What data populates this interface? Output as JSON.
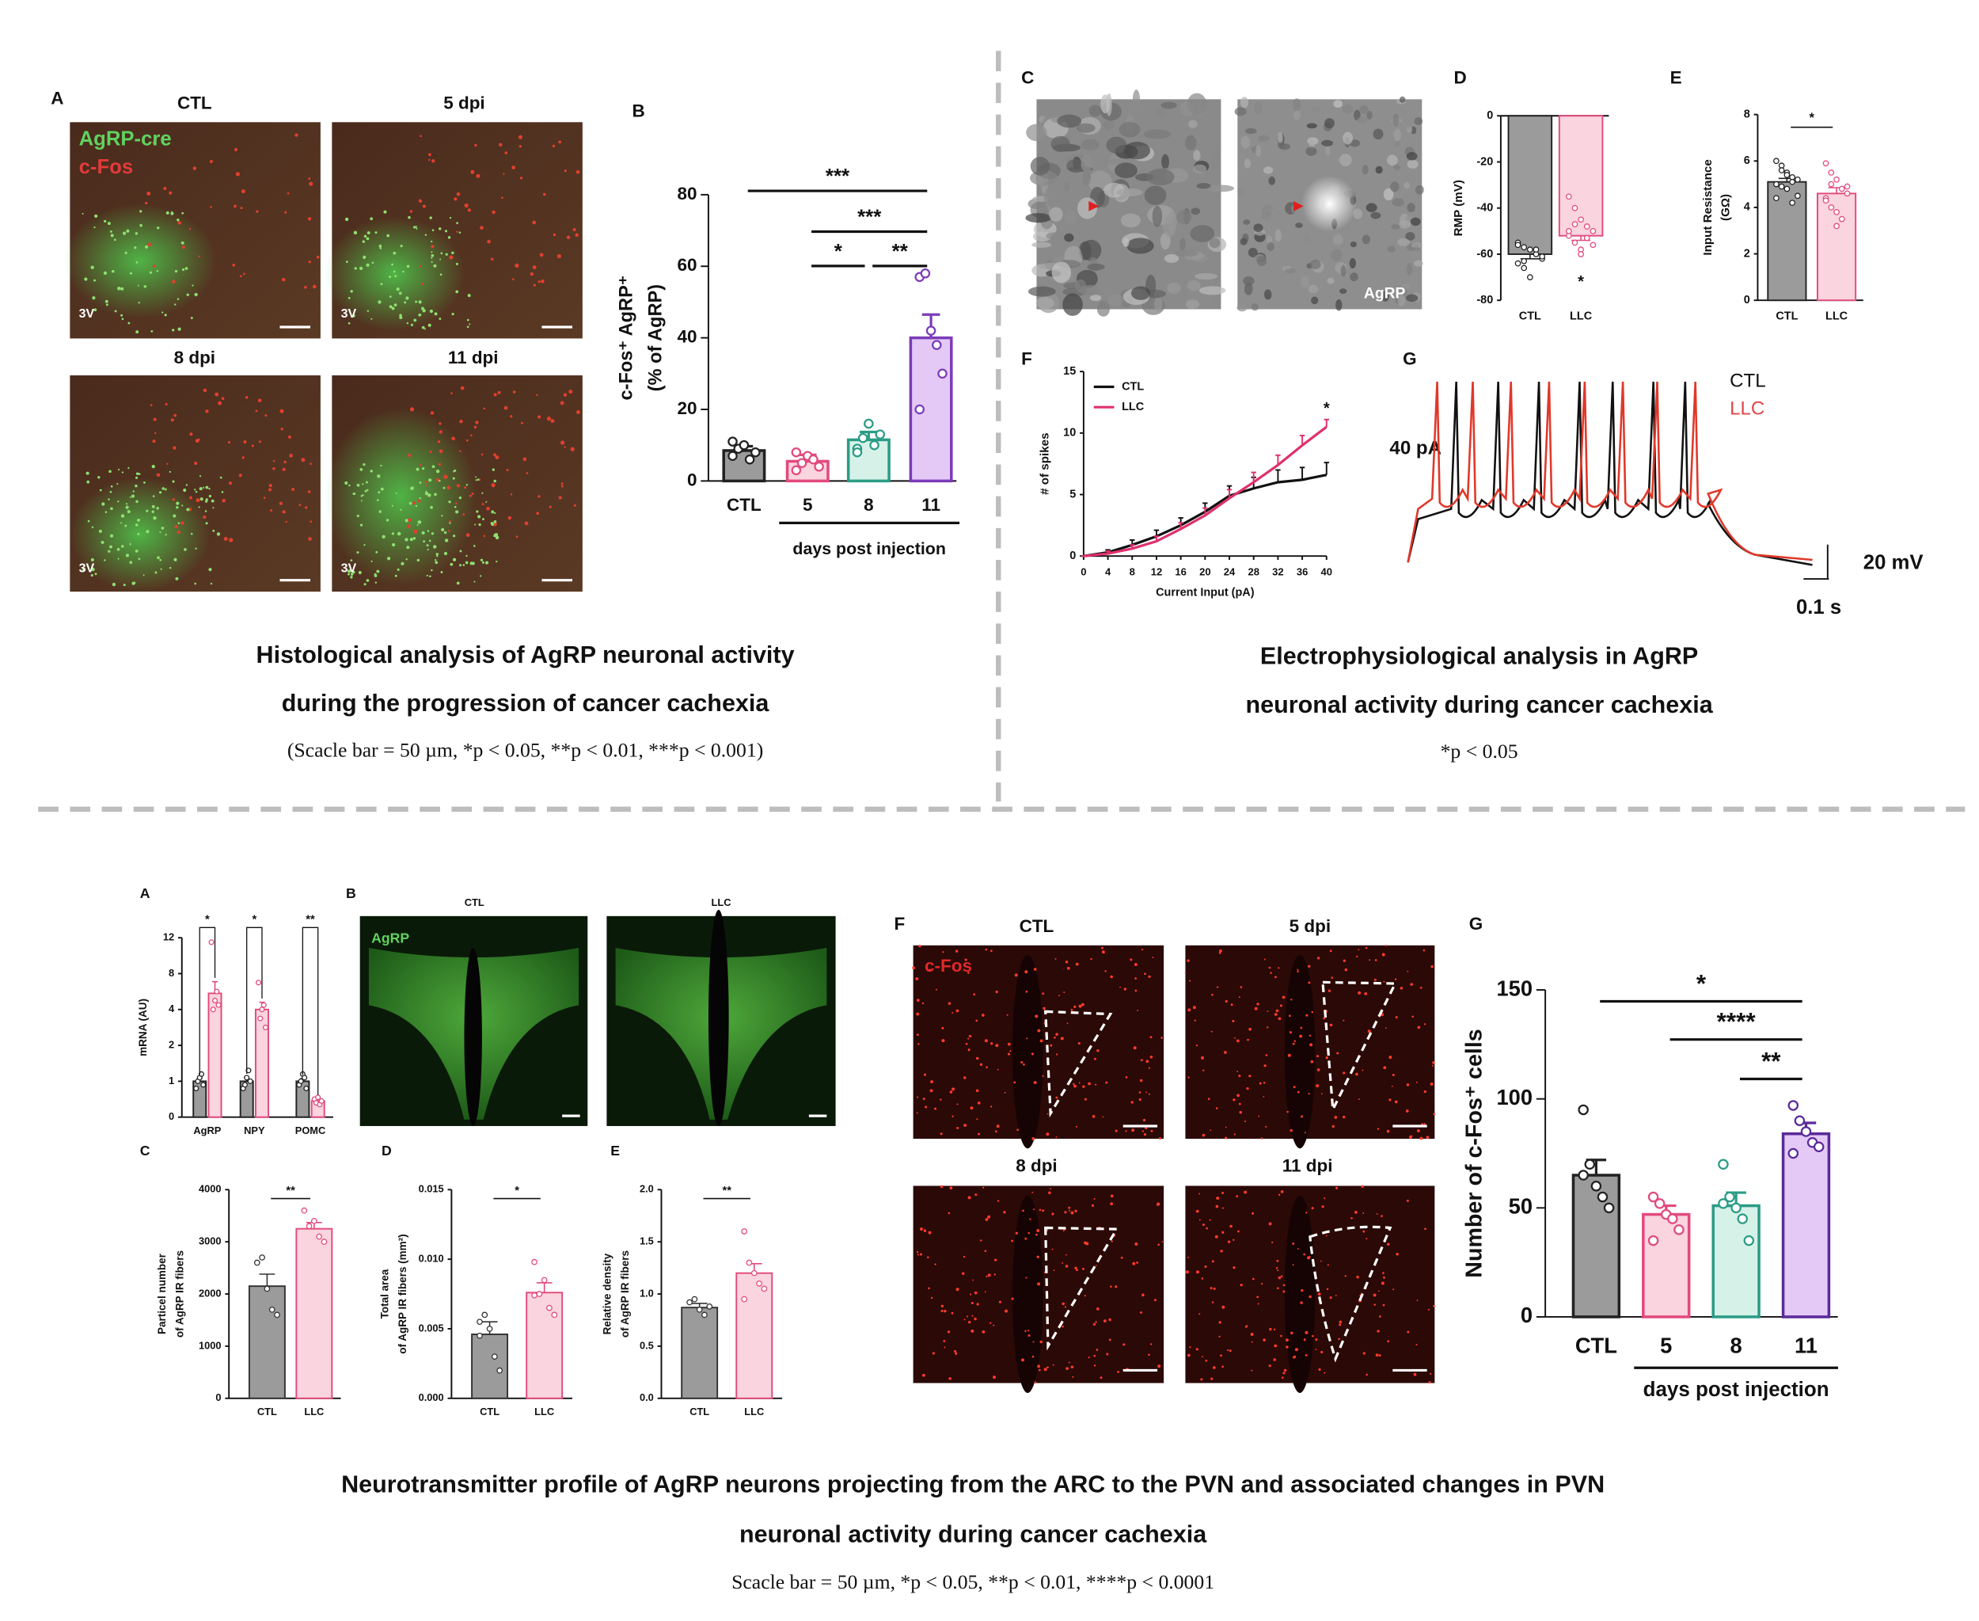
{
  "letters": {
    "top": [
      "A",
      "B",
      "C",
      "D",
      "E",
      "F",
      "G"
    ],
    "bottom": [
      "A",
      "B",
      "C",
      "D",
      "E",
      "F",
      "G"
    ]
  },
  "top_left": {
    "images": [
      "CTL",
      "5 dpi",
      "8 dpi",
      "11 dpi"
    ],
    "channels": [
      "AgRP-cre",
      "c-Fos"
    ],
    "ventricle": "3V",
    "caption": [
      "Histological analysis of AgRP neuronal activity",
      "during the progression of cancer cachexia",
      "(Scacle bar = 50 µm, *p < 0.05, **p < 0.01, ***p < 0.001)"
    ]
  },
  "top_right": {
    "image_label": "AgRP",
    "trace": {
      "legend": [
        "CTL",
        "LLC"
      ],
      "current": "40 pA",
      "voltage": "20 mV",
      "time": "0.1 s"
    },
    "caption": [
      "Electrophysiological analysis in AgRP",
      "neuronal activity during cancer cachexia",
      "*p < 0.05"
    ]
  },
  "bottom": {
    "b_images": [
      "CTL",
      "LLC"
    ],
    "b_channel": "AgRP",
    "f_images": [
      "CTL",
      "5 dpi",
      "8 dpi",
      "11 dpi"
    ],
    "f_channel": "c-Fos",
    "caption": [
      "Neurotransmitter profile of AgRP neurons projecting from the ARC to the PVN and associated changes in PVN",
      "neuronal activity during cancer cachexia",
      "Scacle bar = 50 µm, *p < 0.05, **p < 0.01, ****p < 0.0001"
    ]
  },
  "chart_data": [
    {
      "type": "bar",
      "ylabel": [
        "c-Fos⁺ AgRP⁺",
        "(% of AgRP)"
      ],
      "categories": [
        "CTL",
        "5",
        "8",
        "11"
      ],
      "values": [
        8.5,
        5.5,
        11.5,
        40
      ],
      "errors": [
        1.2,
        1.8,
        2.2,
        6.5
      ],
      "points": [
        [
          7,
          9,
          10,
          6,
          8,
          11
        ],
        [
          3,
          5,
          7,
          6,
          4,
          8
        ],
        [
          9,
          12,
          16,
          10,
          13,
          8
        ],
        [
          57,
          58,
          42,
          38,
          30,
          20
        ]
      ],
      "colors": [
        "#9b9b9b",
        "#fad4de",
        "#d6f2e8",
        "#e4c9f7"
      ],
      "edge_colors": [
        "#222222",
        "#e24a7d",
        "#2b9c86",
        "#7c3cb8"
      ],
      "ylim": [
        0,
        80
      ],
      "yticks": [
        0,
        20,
        40,
        60,
        80
      ],
      "xlabel": "days post injection",
      "significance": [
        {
          "between": [
            "CTL",
            "11"
          ],
          "label": "***"
        },
        {
          "between": [
            "5",
            "11"
          ],
          "label": "***"
        },
        {
          "between": [
            "5",
            "8"
          ],
          "label": "*"
        },
        {
          "between": [
            "8",
            "11"
          ],
          "label": "**"
        }
      ]
    },
    {
      "type": "bar",
      "ylabel": [
        "RMP (mV)"
      ],
      "categories": [
        "CTL",
        "LLC"
      ],
      "values": [
        -60,
        -52
      ],
      "errors": [
        2,
        2
      ],
      "points": [
        [
          -55,
          -57,
          -58,
          -60,
          -62,
          -64,
          -66,
          -70,
          -58,
          -61,
          -56,
          -63
        ],
        [
          -35,
          -40,
          -45,
          -48,
          -50,
          -52,
          -55,
          -58,
          -53,
          -56,
          -50,
          -47,
          -60
        ]
      ],
      "colors": [
        "#9b9b9b",
        "#fad4de"
      ],
      "edge_colors": [
        "#222222",
        "#e24a7d"
      ],
      "ylim": [
        -80,
        0
      ],
      "yticks": [
        -80,
        -60,
        -40,
        -20,
        0
      ],
      "annotations": [
        {
          "text": "*",
          "at": "LLC"
        }
      ]
    },
    {
      "type": "bar",
      "ylabel": [
        "Input Resistance",
        "(GΩ)"
      ],
      "categories": [
        "CTL",
        "LLC"
      ],
      "values": [
        5.1,
        4.6
      ],
      "errors": [
        0.15,
        0.25
      ],
      "points": [
        [
          6.0,
          5.8,
          5.5,
          5.3,
          5.2,
          5.0,
          4.9,
          4.8,
          5.1,
          4.5,
          4.4,
          5.6,
          5.4,
          4.2
        ],
        [
          5.9,
          5.5,
          5.2,
          4.8,
          4.6,
          4.4,
          4.0,
          3.8,
          3.5,
          4.9,
          4.3,
          5.0,
          3.2
        ]
      ],
      "colors": [
        "#9b9b9b",
        "#fad4de"
      ],
      "edge_colors": [
        "#222222",
        "#e24a7d"
      ],
      "ylim": [
        0,
        8
      ],
      "yticks": [
        0,
        2,
        4,
        6,
        8
      ],
      "significance": [
        {
          "between": [
            "CTL",
            "LLC"
          ],
          "label": "*"
        }
      ]
    },
    {
      "type": "line",
      "xlabel": "Current Input (pA)",
      "ylabel": [
        "# of spikes"
      ],
      "x": [
        0,
        4,
        8,
        12,
        16,
        20,
        24,
        28,
        32,
        36,
        40
      ],
      "xlim": [
        0,
        40
      ],
      "xticks": [
        0,
        4,
        8,
        12,
        16,
        20,
        24,
        28,
        32,
        36,
        40
      ],
      "ylim": [
        0,
        15
      ],
      "yticks": [
        0,
        5,
        10,
        15
      ],
      "legend": "upper left",
      "series": [
        {
          "name": "CTL",
          "color": "#111111",
          "values": [
            0,
            0.3,
            0.9,
            1.6,
            2.5,
            3.6,
            4.9,
            5.5,
            6,
            6.2,
            6.6
          ],
          "errors": [
            0,
            0.2,
            0.4,
            0.5,
            0.6,
            0.7,
            0.8,
            0.9,
            1,
            1,
            1
          ]
        },
        {
          "name": "LLC",
          "color": "#e0306e",
          "values": [
            0,
            0.2,
            0.6,
            1.2,
            2.2,
            3.3,
            4.7,
            6,
            7.4,
            9,
            10.5
          ],
          "errors": [
            0,
            0.2,
            0.3,
            0.4,
            0.5,
            0.6,
            0.7,
            0.8,
            0.8,
            0.8,
            0.6
          ]
        }
      ],
      "annotations": [
        {
          "text": "*",
          "x": 40
        }
      ]
    },
    {
      "type": "bar",
      "ylabel": [
        "mRNA (AU)"
      ],
      "categories": [
        "AgRP",
        "NPY",
        "POMC"
      ],
      "series": [
        {
          "color": "#9b9b9b",
          "edge_color": "#222222",
          "values": [
            1,
            1,
            1
          ],
          "errors": [
            0.08,
            0.1,
            0.07
          ],
          "points": [
            [
              0.8,
              1,
              1.1,
              1.2,
              0.9
            ],
            [
              0.8,
              0.9,
              1.1,
              1.3,
              1
            ],
            [
              0.9,
              1,
              1.2,
              1.1,
              0.8
            ]
          ]
        },
        {
          "color": "#fad4de",
          "edge_color": "#e24a7d",
          "values": [
            5.8,
            4,
            0.45
          ],
          "errors": [
            1.3,
            0.8,
            0.06
          ],
          "points": [
            [
              11.5,
              4,
              5,
              6,
              4.5
            ],
            [
              7,
              3.5,
              4,
              4.5,
              3
            ],
            [
              0.5,
              0.4,
              0.55,
              0.35,
              0.45
            ]
          ]
        }
      ],
      "ylim": [
        0,
        12
      ],
      "yticks": [
        0,
        1,
        2,
        4,
        8,
        12
      ],
      "significance": [
        {
          "between": [
            "AgRP"
          ],
          "label": "*"
        },
        {
          "between": [
            "NPY"
          ],
          "label": "*"
        },
        {
          "between": [
            "POMC"
          ],
          "label": "**"
        }
      ]
    },
    {
      "type": "bar",
      "ylabel": [
        "Particel number",
        "of AgRP IR fibers"
      ],
      "categories": [
        "CTL",
        "LLC"
      ],
      "values": [
        2150,
        3250
      ],
      "errors": [
        230,
        120
      ],
      "points": [
        [
          2600,
          2700,
          2100,
          1700,
          1600
        ],
        [
          3600,
          3300,
          3400,
          3100,
          3000
        ]
      ],
      "colors": [
        "#9b9b9b",
        "#fad4de"
      ],
      "edge_colors": [
        "#333333",
        "#e24a7d"
      ],
      "ylim": [
        0,
        4000
      ],
      "yticks": [
        0,
        1000,
        2000,
        3000,
        4000
      ],
      "significance": [
        {
          "between": [
            "CTL",
            "LLC"
          ],
          "label": "**"
        }
      ]
    },
    {
      "type": "bar",
      "ylabel": [
        "Total area",
        "of AgRP IR fibers (mm²)"
      ],
      "categories": [
        "CTL",
        "LLC"
      ],
      "values": [
        0.0046,
        0.0076
      ],
      "errors": [
        0.0009,
        0.0007
      ],
      "points": [
        [
          0.0055,
          0.006,
          0.005,
          0.003,
          0.002,
          0.0045
        ],
        [
          0.0098,
          0.0075,
          0.0085,
          0.0065,
          0.006,
          0.0074
        ]
      ],
      "colors": [
        "#9b9b9b",
        "#fad4de"
      ],
      "edge_colors": [
        "#333333",
        "#e24a7d"
      ],
      "ylim": [
        0,
        0.015
      ],
      "yticks": [
        {
          "value": 0,
          "label": "0.000"
        },
        {
          "value": 0.005,
          "label": "0.005"
        },
        {
          "value": 0.01,
          "label": "0.010"
        },
        {
          "value": 0.015,
          "label": "0.015"
        }
      ],
      "significance": [
        {
          "between": [
            "CTL",
            "LLC"
          ],
          "label": "*"
        }
      ]
    },
    {
      "type": "bar",
      "ylabel": [
        "Relative density",
        "of AgRP IR fibers"
      ],
      "categories": [
        "CTL",
        "LLC"
      ],
      "values": [
        0.87,
        1.2
      ],
      "errors": [
        0.04,
        0.09
      ],
      "points": [
        [
          0.92,
          0.95,
          0.85,
          0.8,
          0.88
        ],
        [
          1.6,
          1.3,
          1.2,
          1.1,
          1.05,
          0.95
        ]
      ],
      "colors": [
        "#9b9b9b",
        "#fad4de"
      ],
      "edge_colors": [
        "#333333",
        "#e24a7d"
      ],
      "ylim": [
        0,
        2
      ],
      "yticks": [
        {
          "value": 0,
          "label": "0.0"
        },
        {
          "value": 0.5,
          "label": "0.5"
        },
        {
          "value": 1,
          "label": "1.0"
        },
        {
          "value": 1.5,
          "label": "1.5"
        },
        {
          "value": 2,
          "label": "2.0"
        }
      ],
      "significance": [
        {
          "between": [
            "CTL",
            "LLC"
          ],
          "label": "**"
        }
      ]
    },
    {
      "type": "bar",
      "ylabel": [
        "Number of c-Fos⁺ cells"
      ],
      "categories": [
        "CTL",
        "5",
        "8",
        "11"
      ],
      "values": [
        65,
        47,
        51,
        84
      ],
      "errors": [
        7,
        4,
        6,
        5
      ],
      "points": [
        [
          95,
          70,
          60,
          55,
          50,
          65
        ],
        [
          55,
          52,
          47,
          45,
          40,
          35
        ],
        [
          70,
          55,
          50,
          45,
          35,
          52
        ],
        [
          97,
          90,
          85,
          80,
          78,
          75
        ]
      ],
      "colors": [
        "#9b9b9b",
        "#fad4de",
        "#d6f2e8",
        "#e4c9f7"
      ],
      "edge_colors": [
        "#222222",
        "#e24a7d",
        "#2b9c86",
        "#5a2a99"
      ],
      "ylim": [
        0,
        150
      ],
      "yticks": [
        0,
        50,
        100,
        150
      ],
      "xlabel": "days post injection",
      "significance": [
        {
          "between": [
            "CTL",
            "11"
          ],
          "label": "*"
        },
        {
          "between": [
            "5",
            "11"
          ],
          "label": "****"
        },
        {
          "between": [
            "8",
            "11"
          ],
          "label": "**"
        }
      ]
    }
  ]
}
